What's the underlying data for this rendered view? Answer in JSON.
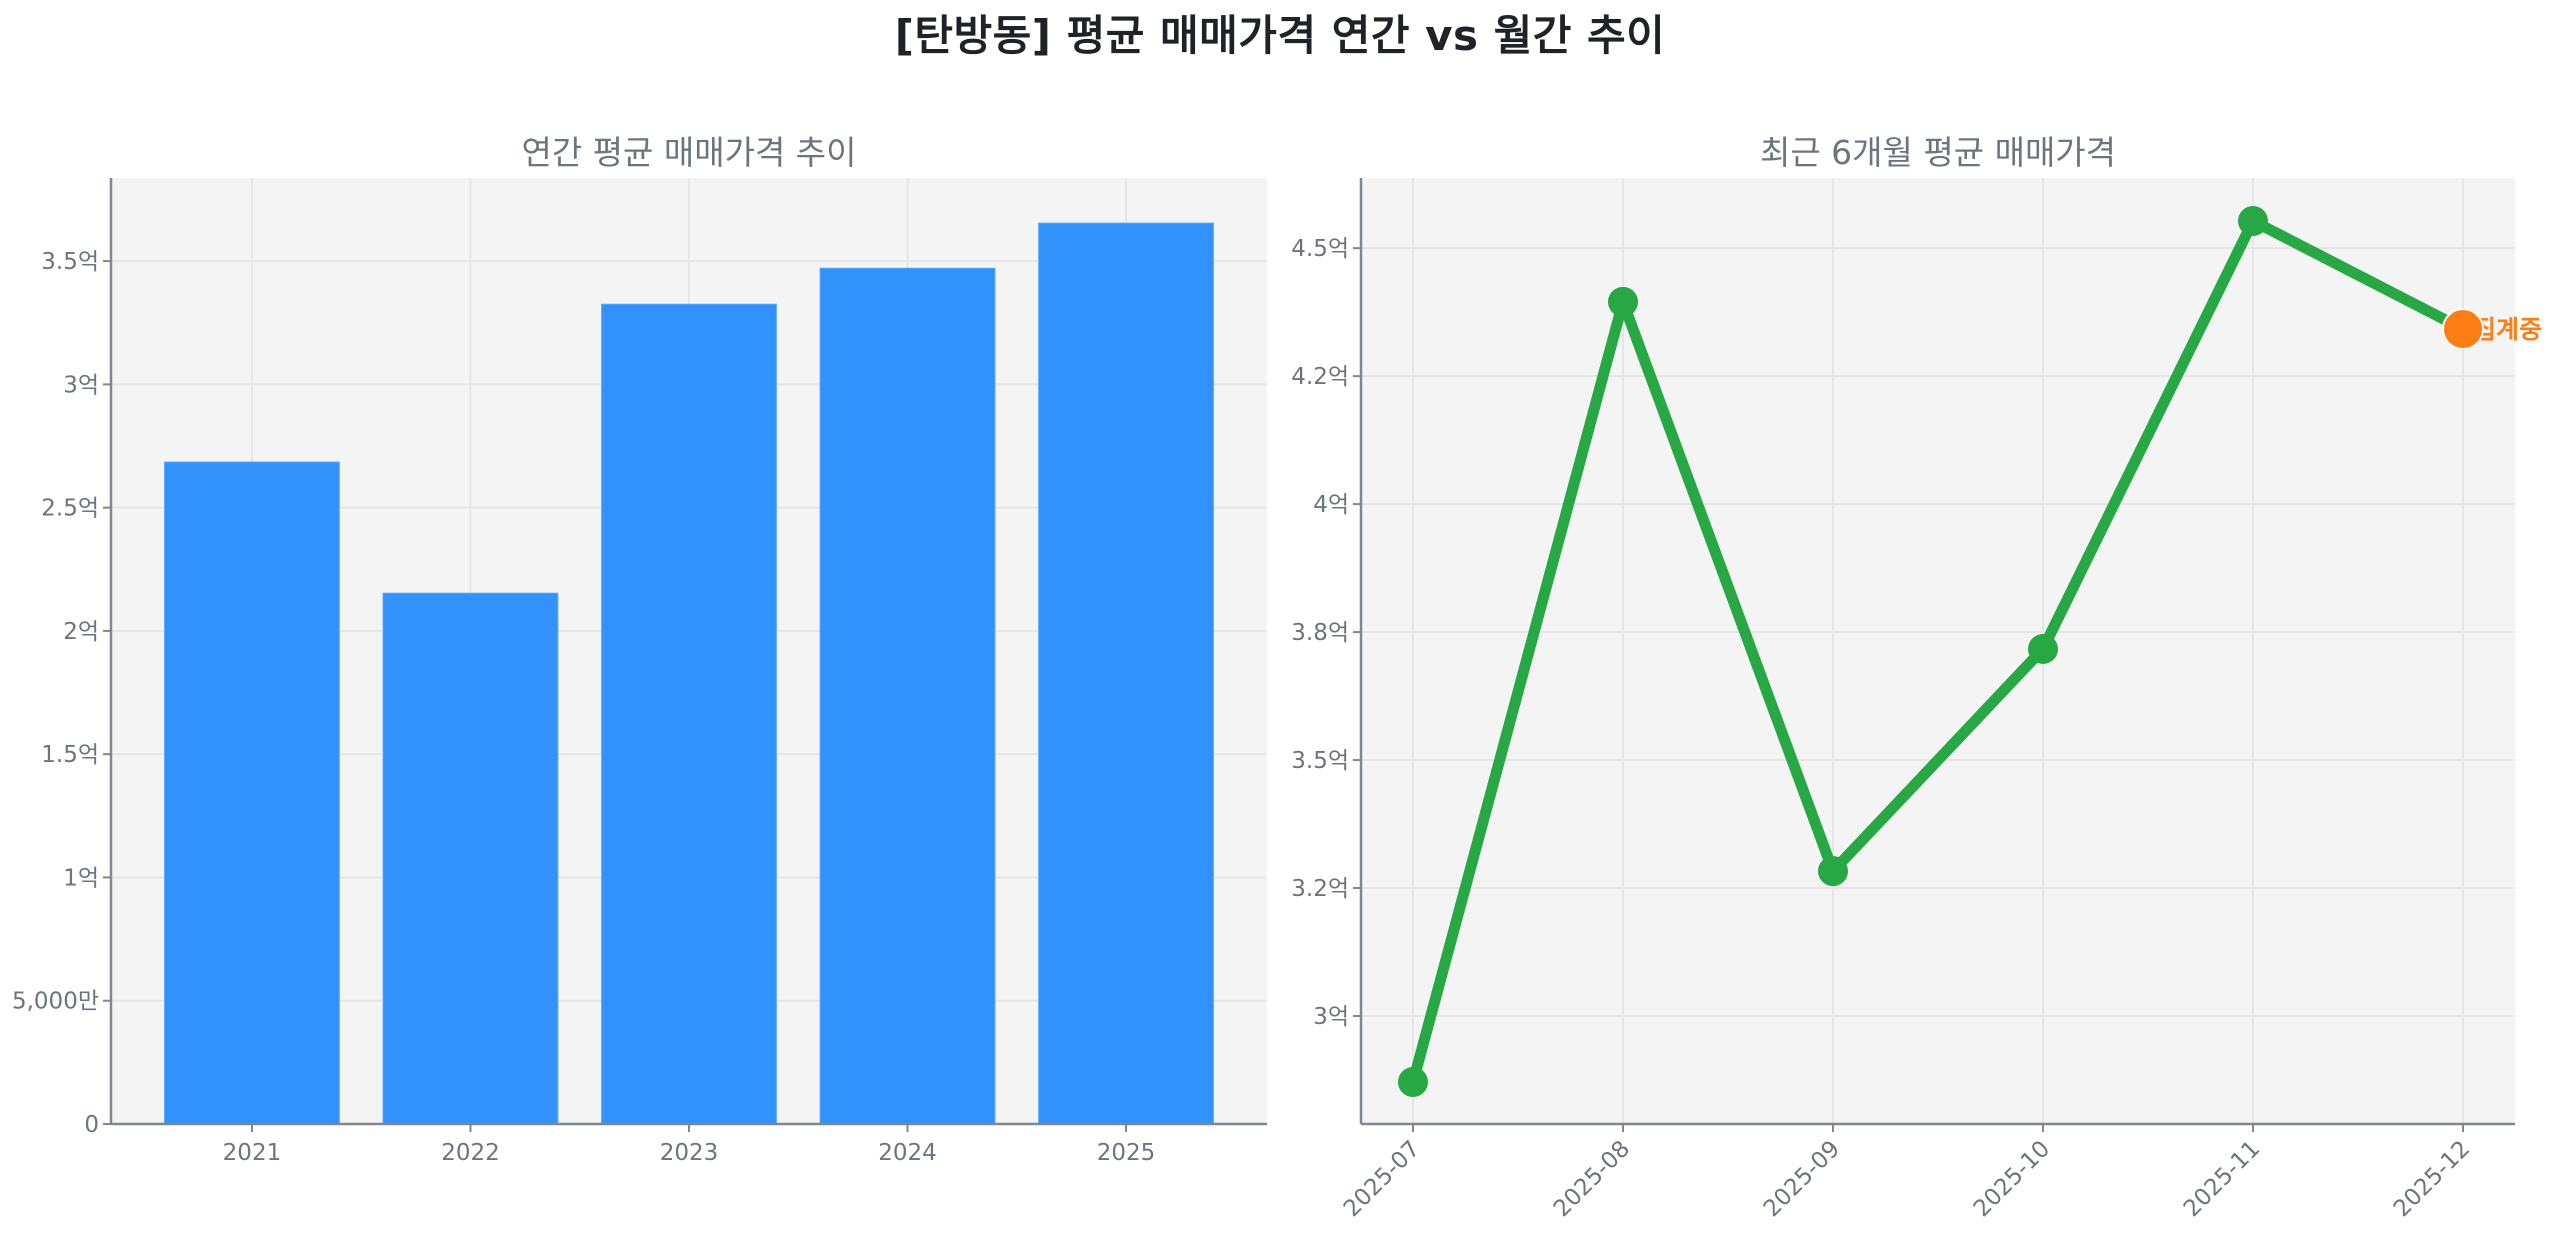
{
  "figure": {
    "title": "[탄방동] 평균 매매가격 연간 vs 월간 추이"
  },
  "colors": {
    "bar": "#3092fa",
    "line": "#28a745",
    "current_marker": "#fd7e14",
    "annotation": "#fd7e14",
    "plot_bg": "#f4f4f4",
    "grid": "#e6e6e6",
    "spine": "#7f8790",
    "tick_text": "#6c757d"
  },
  "chart_data": [
    {
      "type": "bar",
      "title": "연간 평균 매매가격 추이",
      "xlabel": "",
      "ylabel": "",
      "categories": [
        "2021",
        "2022",
        "2023",
        "2024",
        "2025"
      ],
      "values": [
        268500000,
        215300000,
        332500000,
        347100000,
        365400000
      ],
      "unit": "원",
      "ylim": [
        0,
        383700000
      ],
      "yticks": [
        0,
        50000000,
        100000000,
        150000000,
        200000000,
        250000000,
        300000000,
        350000000
      ],
      "ytick_labels": [
        "0",
        "5,000만",
        "1억",
        "1.5억",
        "2억",
        "2.5억",
        "3억",
        "3.5억"
      ],
      "grid": true,
      "legend": null
    },
    {
      "type": "line",
      "title": "최근 6개월 평균 매매가격",
      "xlabel": "",
      "ylabel": "",
      "categories": [
        "2025-07",
        "2025-08",
        "2025-09",
        "2025-10",
        "2025-11",
        "2025-12"
      ],
      "values": [
        287100000,
        439500000,
        328300000,
        371700000,
        455300000,
        434200000
      ],
      "unit": "원",
      "ylim": [
        278900000,
        463700000
      ],
      "yticks": [
        300000000,
        325000000,
        350000000,
        375000000,
        400000000,
        425000000,
        450000000
      ],
      "ytick_labels": [
        "3억",
        "3.2억",
        "3.5억",
        "3.8억",
        "4억",
        "4.2억",
        "4.5억"
      ],
      "xtick_rotation": 45,
      "grid": true,
      "legend": null,
      "annotations": [
        {
          "index": 5,
          "text": "집계중",
          "marker_color": "#fd7e14"
        }
      ]
    }
  ]
}
